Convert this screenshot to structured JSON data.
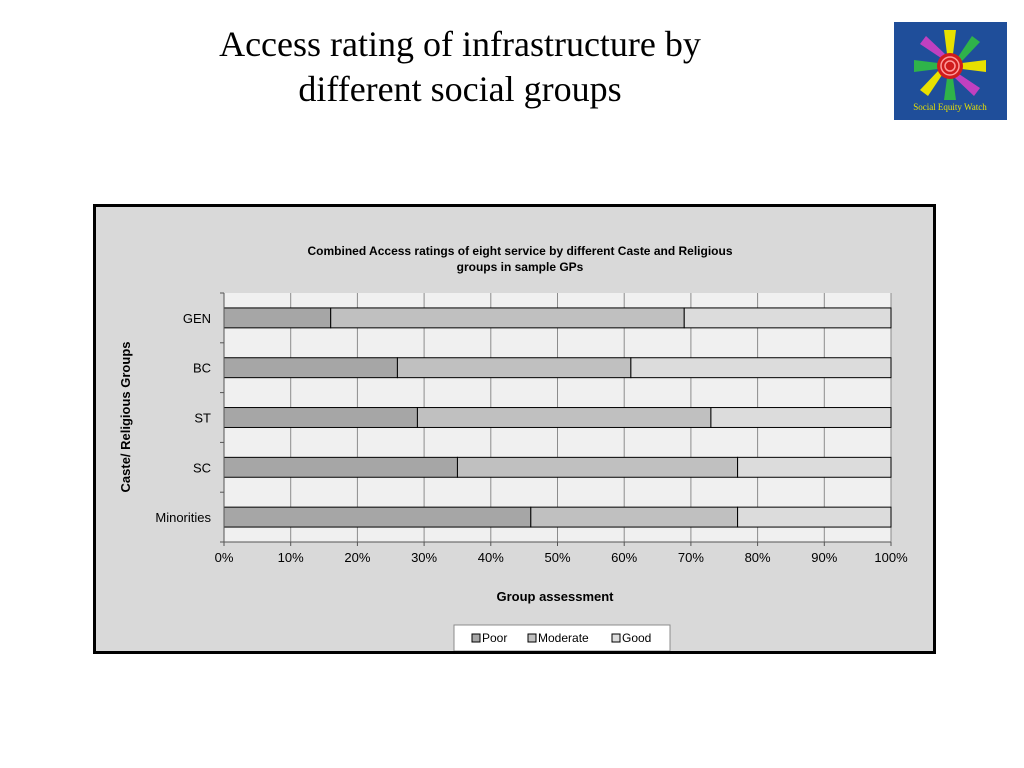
{
  "slide": {
    "title_line1": "Access rating of infrastructure by",
    "title_line2": "different social groups"
  },
  "logo": {
    "name": "social-equity-watch-logo",
    "text": "Social Equity Watch"
  },
  "colors": {
    "frame_bg": "#d9d9d9",
    "plot_bg": "#f0f0f0",
    "poor": "#a6a6a6",
    "moderate": "#c0c0c0",
    "good": "#dcdcdc",
    "logo_bg": "#1f4e9a"
  },
  "chart_data": {
    "type": "bar",
    "orientation": "horizontal",
    "stacked": "percent",
    "title": "Combined Access ratings of eight service by different Caste and Religious groups in sample GPs",
    "title_line1": "Combined Access ratings of eight service by different Caste and Religious",
    "title_line2": "groups in sample GPs",
    "xlabel": "Group assessment",
    "ylabel": "Caste/ Religious Groups",
    "xlim": [
      0,
      100
    ],
    "xticks": [
      "0%",
      "10%",
      "20%",
      "30%",
      "40%",
      "50%",
      "60%",
      "70%",
      "80%",
      "90%",
      "100%"
    ],
    "categories": [
      "GEN",
      "BC",
      "ST",
      "SC",
      "Minorities"
    ],
    "series": [
      {
        "name": "Poor",
        "values": [
          16,
          26,
          29,
          35,
          46
        ]
      },
      {
        "name": "Moderate",
        "values": [
          53,
          35,
          44,
          42,
          31
        ]
      },
      {
        "name": "Good",
        "values": [
          31,
          39,
          27,
          23,
          23
        ]
      }
    ],
    "grid": true,
    "legend": "bottom"
  }
}
